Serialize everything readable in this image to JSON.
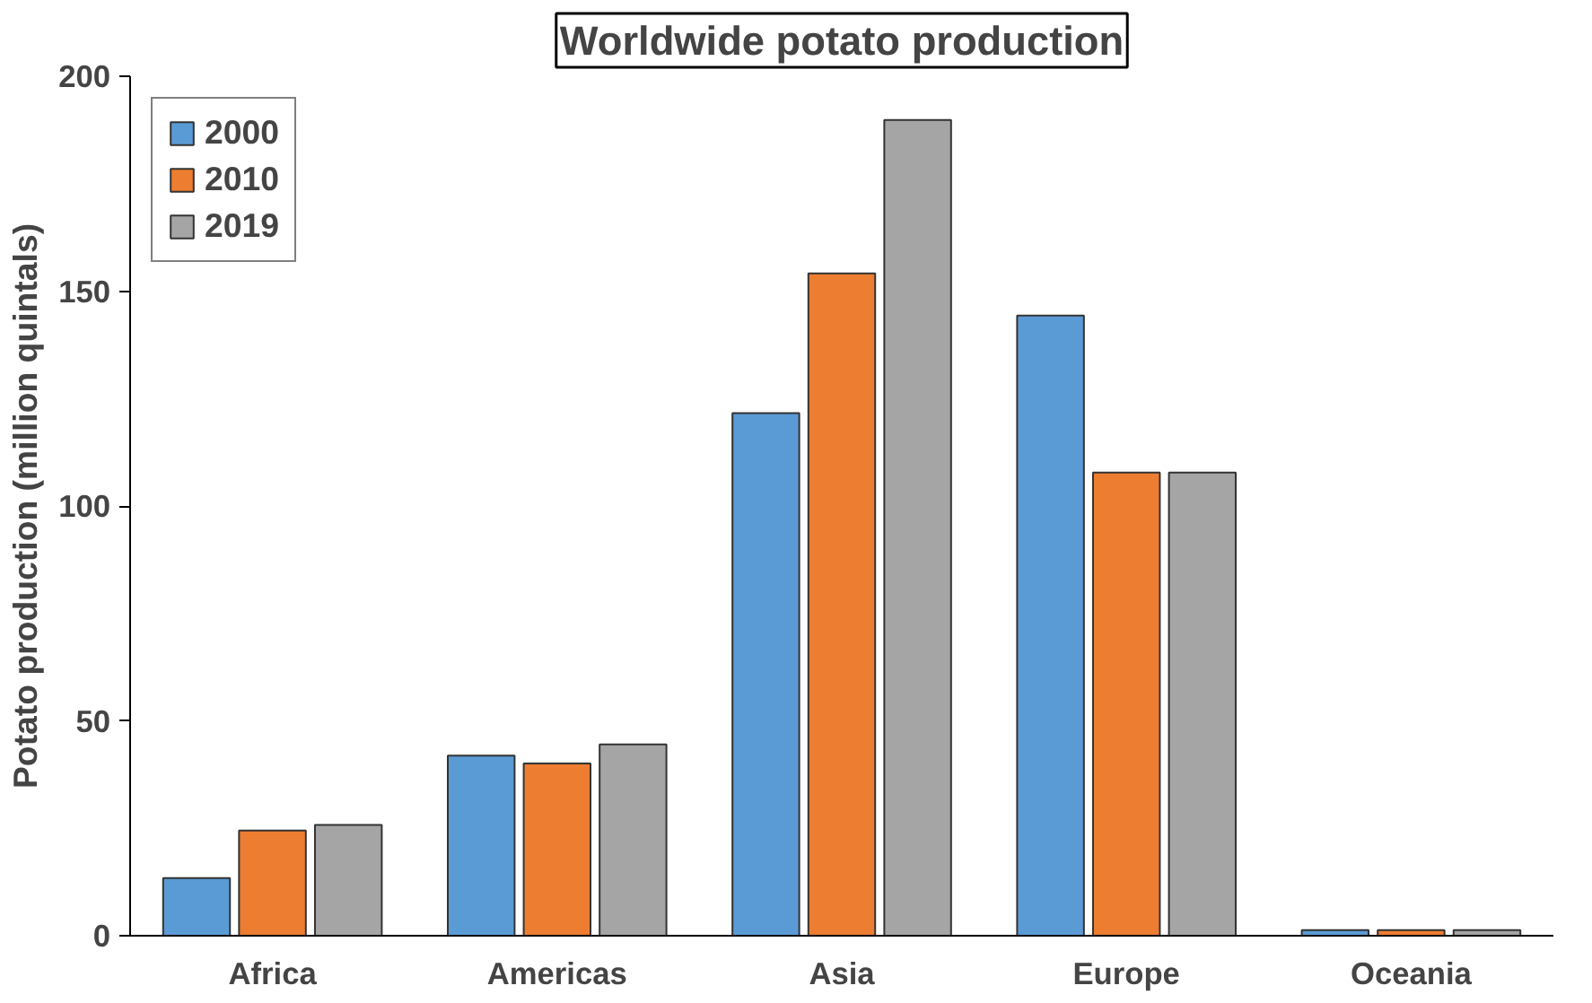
{
  "chart_data": {
    "type": "bar",
    "title": "Worldwide potato production",
    "ylabel": "Potato production (million quintals)",
    "categories": [
      "Africa",
      "Americas",
      "Asia",
      "Europe",
      "Oceania"
    ],
    "series": [
      {
        "name": "2000",
        "color": "#5b9bd5",
        "values": [
          13.4,
          41.9,
          121.6,
          144.3,
          1.3
        ]
      },
      {
        "name": "2010",
        "color": "#ed7d31",
        "values": [
          24.5,
          40.1,
          154.1,
          107.8,
          1.3
        ]
      },
      {
        "name": "2019",
        "color": "#a5a5a5",
        "values": [
          25.8,
          44.5,
          189.8,
          107.8,
          1.3
        ]
      }
    ],
    "ylim": [
      0,
      200
    ],
    "yticks": [
      0,
      50,
      100,
      150,
      200
    ],
    "grid": false,
    "legend": "top left"
  }
}
